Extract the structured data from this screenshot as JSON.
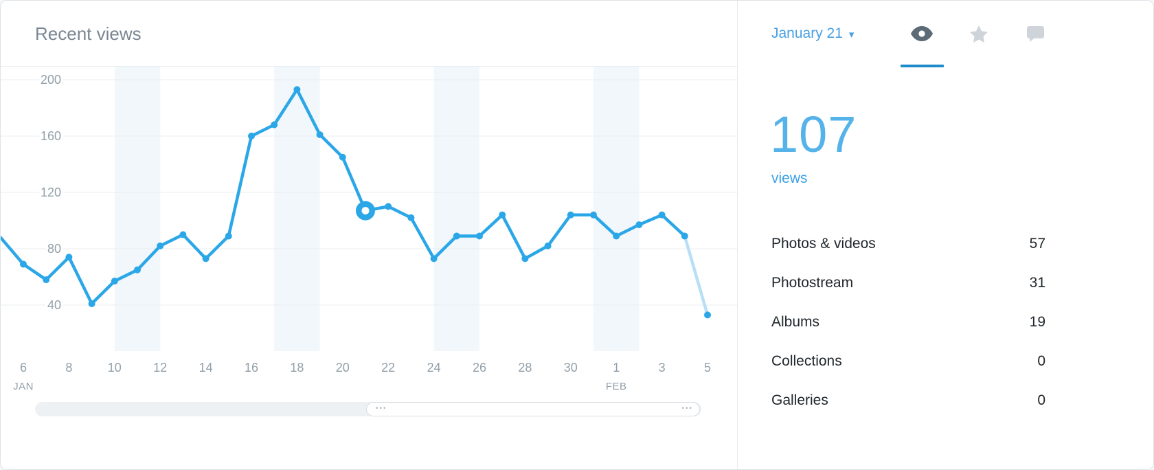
{
  "header": {
    "title": "Recent views"
  },
  "right_panel": {
    "date_label": "January 21",
    "views_count": "107",
    "views_label": "views",
    "stats": [
      {
        "label": "Photos & videos",
        "value": "57"
      },
      {
        "label": "Photostream",
        "value": "31"
      },
      {
        "label": "Albums",
        "value": "19"
      },
      {
        "label": "Collections",
        "value": "0"
      },
      {
        "label": "Galleries",
        "value": "0"
      }
    ]
  },
  "chart_data": {
    "type": "line",
    "title": "Recent views",
    "xlabel": "",
    "ylabel": "views",
    "ylim": [
      0,
      220
    ],
    "yticks": [
      200,
      160,
      120,
      80,
      40
    ],
    "grid": "horizontal",
    "legend": "off",
    "points": [
      [
        5,
        88
      ],
      [
        6,
        69
      ],
      [
        7,
        58
      ],
      [
        8,
        74
      ],
      [
        9,
        41
      ],
      [
        10,
        57
      ],
      [
        11,
        65
      ],
      [
        12,
        82
      ],
      [
        13,
        90
      ],
      [
        14,
        73
      ],
      [
        15,
        89
      ],
      [
        16,
        160
      ],
      [
        17,
        168
      ],
      [
        18,
        193
      ],
      [
        19,
        161
      ],
      [
        20,
        145
      ],
      [
        21,
        107
      ],
      [
        22,
        110
      ],
      [
        23,
        102
      ],
      [
        24,
        73
      ],
      [
        25,
        89
      ],
      [
        26,
        89
      ],
      [
        27,
        104
      ],
      [
        28,
        73
      ],
      [
        29,
        82
      ],
      [
        30,
        104
      ],
      [
        31,
        104
      ],
      [
        32,
        89
      ],
      [
        33,
        97
      ],
      [
        34,
        104
      ],
      [
        35,
        89
      ],
      [
        36,
        33
      ]
    ],
    "highlight": {
      "day": 21,
      "value": 107,
      "label": "January 21"
    },
    "xticks": [
      {
        "day": 6,
        "label": "6",
        "sub": "JAN"
      },
      {
        "day": 8,
        "label": "8"
      },
      {
        "day": 10,
        "label": "10"
      },
      {
        "day": 12,
        "label": "12"
      },
      {
        "day": 14,
        "label": "14"
      },
      {
        "day": 16,
        "label": "16"
      },
      {
        "day": 18,
        "label": "18"
      },
      {
        "day": 20,
        "label": "20"
      },
      {
        "day": 22,
        "label": "22"
      },
      {
        "day": 24,
        "label": "24"
      },
      {
        "day": 26,
        "label": "26"
      },
      {
        "day": 28,
        "label": "28"
      },
      {
        "day": 30,
        "label": "30"
      },
      {
        "day": 32,
        "label": "1",
        "sub": "FEB"
      },
      {
        "day": 34,
        "label": "3"
      },
      {
        "day": 36,
        "label": "5"
      }
    ],
    "weekend_bands": [
      [
        10,
        12
      ],
      [
        17,
        19
      ],
      [
        24,
        26
      ],
      [
        31,
        33
      ]
    ],
    "colors": {
      "line": "#2ba7e8",
      "line_partial": "#b9dff5",
      "band": "#f1f7fb",
      "grid": "#e9edf0",
      "axis_text": "#93a0a9",
      "accent_blue": "#4aa0e3",
      "big_number": "#56b3ea",
      "active_tab": "#1e8bcb"
    }
  }
}
